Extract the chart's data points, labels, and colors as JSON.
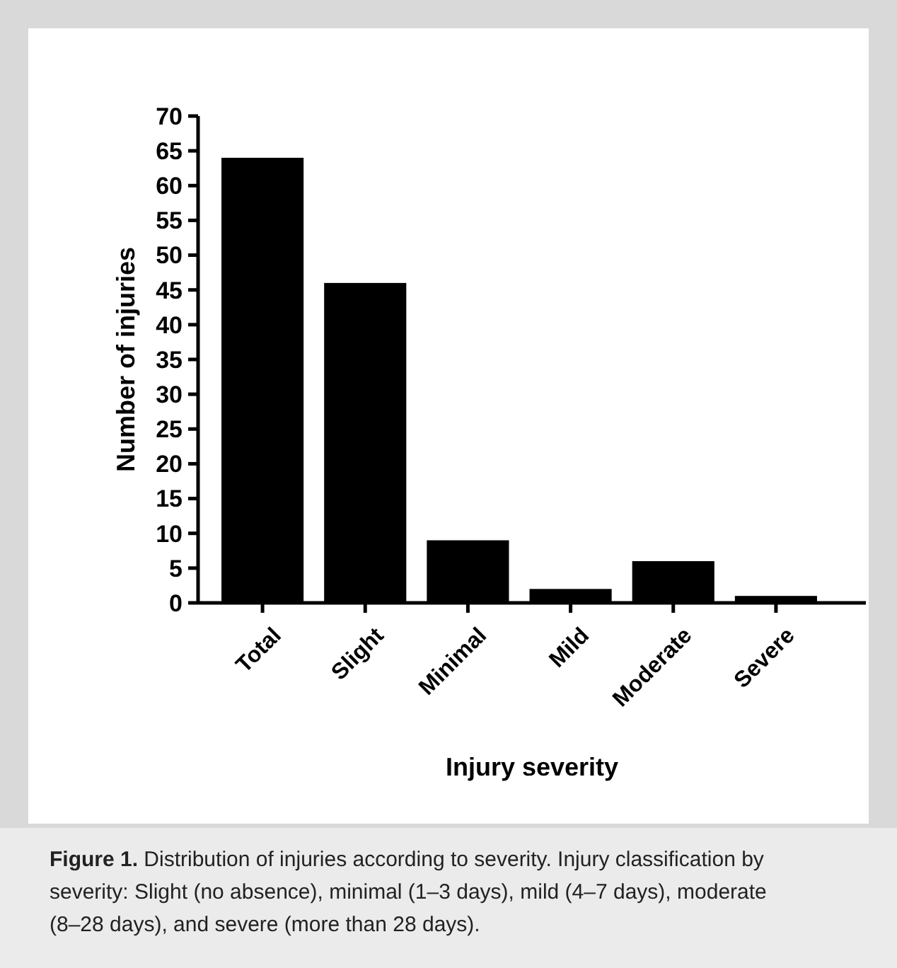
{
  "chart_data": {
    "type": "bar",
    "xlabel": "Injury severity",
    "ylabel": "Number of injuries",
    "categories": [
      "Total",
      "Slight",
      "Minimal",
      "Mild",
      "Moderate",
      "Severe"
    ],
    "values": [
      64,
      46,
      9,
      2,
      6,
      1
    ],
    "color": "#000000",
    "ylim": [
      0,
      70
    ],
    "yticks": [
      0,
      5,
      10,
      15,
      20,
      25,
      30,
      35,
      40,
      45,
      50,
      55,
      60,
      65,
      70
    ],
    "grid": false,
    "annotations": [
      "Figure 1. Distribution of injuries according to severity. Injury classification by severity: Slight (no absence), minimal (1–3 days), mild (4–7 days), moderate (8–28 days), and severe (more than 28 days)."
    ]
  }
}
